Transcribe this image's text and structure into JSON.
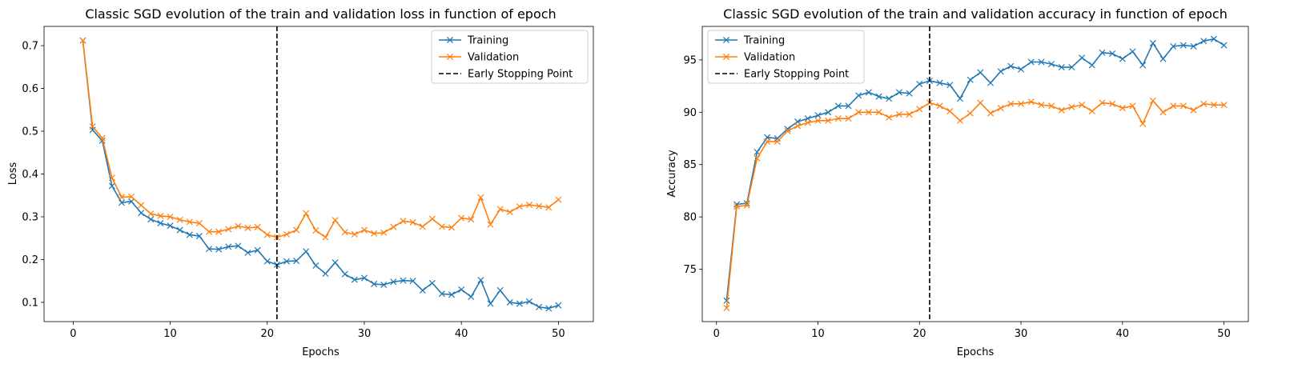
{
  "chart_data": [
    {
      "type": "line",
      "title": "Classic SGD evolution of the train and validation loss in function of epoch",
      "xlabel": "Epochs",
      "ylabel": "Loss",
      "xlim": [
        -3,
        53.6
      ],
      "ylim": [
        0.055,
        0.745
      ],
      "xticks": [
        0,
        10,
        20,
        30,
        40,
        50
      ],
      "yticks": [
        0.1,
        0.2,
        0.3,
        0.4,
        0.5,
        0.6,
        0.7
      ],
      "ytick_decimals": 1,
      "legend_position": "top-right",
      "grid": false,
      "x": [
        1,
        2,
        3,
        4,
        5,
        6,
        7,
        8,
        9,
        10,
        11,
        12,
        13,
        14,
        15,
        16,
        17,
        18,
        19,
        20,
        21,
        22,
        23,
        24,
        25,
        26,
        27,
        28,
        29,
        30,
        31,
        32,
        33,
        34,
        35,
        36,
        37,
        38,
        39,
        40,
        41,
        42,
        43,
        44,
        45,
        46,
        47,
        48,
        49,
        50
      ],
      "series": [
        {
          "name": "Training",
          "color": "#1f77b4",
          "marker": "x",
          "values": [
            0.712,
            0.503,
            0.478,
            0.372,
            0.333,
            0.336,
            0.309,
            0.294,
            0.285,
            0.279,
            0.269,
            0.258,
            0.255,
            0.225,
            0.224,
            0.23,
            0.232,
            0.216,
            0.222,
            0.196,
            0.188,
            0.196,
            0.197,
            0.219,
            0.186,
            0.167,
            0.193,
            0.166,
            0.153,
            0.157,
            0.143,
            0.141,
            0.148,
            0.151,
            0.15,
            0.128,
            0.145,
            0.12,
            0.118,
            0.13,
            0.113,
            0.152,
            0.097,
            0.128,
            0.1,
            0.097,
            0.102,
            0.089,
            0.086,
            0.093
          ]
        },
        {
          "name": "Validation",
          "color": "#ff7f0e",
          "marker": "x",
          "values": [
            0.712,
            0.511,
            0.484,
            0.391,
            0.346,
            0.347,
            0.327,
            0.307,
            0.302,
            0.3,
            0.293,
            0.288,
            0.285,
            0.265,
            0.265,
            0.271,
            0.278,
            0.274,
            0.276,
            0.258,
            0.252,
            0.259,
            0.269,
            0.308,
            0.268,
            0.252,
            0.292,
            0.264,
            0.259,
            0.269,
            0.261,
            0.263,
            0.276,
            0.29,
            0.287,
            0.277,
            0.295,
            0.277,
            0.275,
            0.297,
            0.294,
            0.345,
            0.282,
            0.318,
            0.311,
            0.324,
            0.328,
            0.325,
            0.322,
            0.34
          ]
        }
      ],
      "vline": {
        "name": "Early Stopping Point",
        "x": 21,
        "color": "#000000",
        "style": "dashed"
      }
    },
    {
      "type": "line",
      "title": "Classic SGD evolution of the train and validation accuracy in function of epoch",
      "xlabel": "Epochs",
      "ylabel": "Accuracy",
      "xlim": [
        -1.4,
        52.4
      ],
      "ylim": [
        70.0,
        98.2
      ],
      "xticks": [
        0,
        10,
        20,
        30,
        40,
        50
      ],
      "yticks": [
        75,
        80,
        85,
        90,
        95
      ],
      "ytick_decimals": 0,
      "legend_position": "top-left",
      "grid": false,
      "x": [
        1,
        2,
        3,
        4,
        5,
        6,
        7,
        8,
        9,
        10,
        11,
        12,
        13,
        14,
        15,
        16,
        17,
        18,
        19,
        20,
        21,
        22,
        23,
        24,
        25,
        26,
        27,
        28,
        29,
        30,
        31,
        32,
        33,
        34,
        35,
        36,
        37,
        38,
        39,
        40,
        41,
        42,
        43,
        44,
        45,
        46,
        47,
        48,
        49,
        50
      ],
      "series": [
        {
          "name": "Training",
          "color": "#1f77b4",
          "marker": "x",
          "values": [
            72.0,
            81.2,
            81.3,
            86.2,
            87.6,
            87.5,
            88.4,
            89.1,
            89.4,
            89.7,
            90.0,
            90.6,
            90.6,
            91.6,
            91.9,
            91.5,
            91.3,
            91.9,
            91.8,
            92.7,
            93.0,
            92.8,
            92.6,
            91.3,
            93.1,
            93.8,
            92.8,
            93.9,
            94.4,
            94.1,
            94.8,
            94.8,
            94.6,
            94.3,
            94.3,
            95.2,
            94.5,
            95.7,
            95.6,
            95.1,
            95.8,
            94.5,
            96.6,
            95.1,
            96.3,
            96.4,
            96.3,
            96.8,
            97.0,
            96.4
          ]
        },
        {
          "name": "Validation",
          "color": "#ff7f0e",
          "marker": "x",
          "values": [
            71.3,
            81.0,
            81.1,
            85.6,
            87.2,
            87.2,
            88.2,
            88.7,
            89.0,
            89.2,
            89.2,
            89.4,
            89.4,
            90.0,
            90.0,
            90.0,
            89.5,
            89.8,
            89.8,
            90.3,
            90.9,
            90.6,
            90.1,
            89.2,
            89.9,
            90.9,
            89.9,
            90.4,
            90.8,
            90.8,
            91.0,
            90.7,
            90.6,
            90.2,
            90.5,
            90.7,
            90.1,
            90.9,
            90.8,
            90.4,
            90.6,
            88.9,
            91.1,
            90.0,
            90.6,
            90.6,
            90.2,
            90.8,
            90.7,
            90.7
          ]
        }
      ],
      "vline": {
        "name": "Early Stopping Point",
        "x": 21,
        "color": "#000000",
        "style": "dashed"
      }
    }
  ]
}
